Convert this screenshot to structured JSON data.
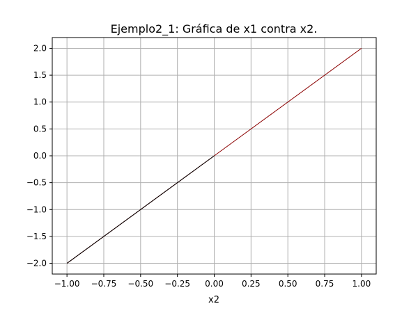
{
  "chart_data": {
    "type": "line",
    "title": "Ejemplo2_1: Gráfica de x1 contra x2.",
    "xlabel": "x2",
    "ylabel": "",
    "xlim": [
      -1.1,
      1.1
    ],
    "ylim": [
      -2.2,
      2.2
    ],
    "xticks": [
      -1.0,
      -0.75,
      -0.5,
      -0.25,
      0.0,
      0.25,
      0.5,
      0.75,
      1.0
    ],
    "xtick_labels": [
      "−1.00",
      "−0.75",
      "−0.50",
      "−0.25",
      "0.00",
      "0.25",
      "0.50",
      "0.75",
      "1.00"
    ],
    "yticks": [
      -2.0,
      -1.5,
      -1.0,
      -0.5,
      0.0,
      0.5,
      1.0,
      1.5,
      2.0
    ],
    "ytick_labels": [
      "−2.0",
      "−1.5",
      "−1.0",
      "−0.5",
      "0.0",
      "0.5",
      "1.0",
      "1.5",
      "2.0"
    ],
    "grid": true,
    "series": [
      {
        "x": [
          -1.0,
          0.0,
          1.0
        ],
        "y": [
          -2.0,
          0.0,
          2.0
        ],
        "color": "#8b0000"
      },
      {
        "x": [
          -1.0,
          0.0
        ],
        "y": [
          -2.0,
          0.0
        ],
        "color": "#000000"
      }
    ]
  }
}
